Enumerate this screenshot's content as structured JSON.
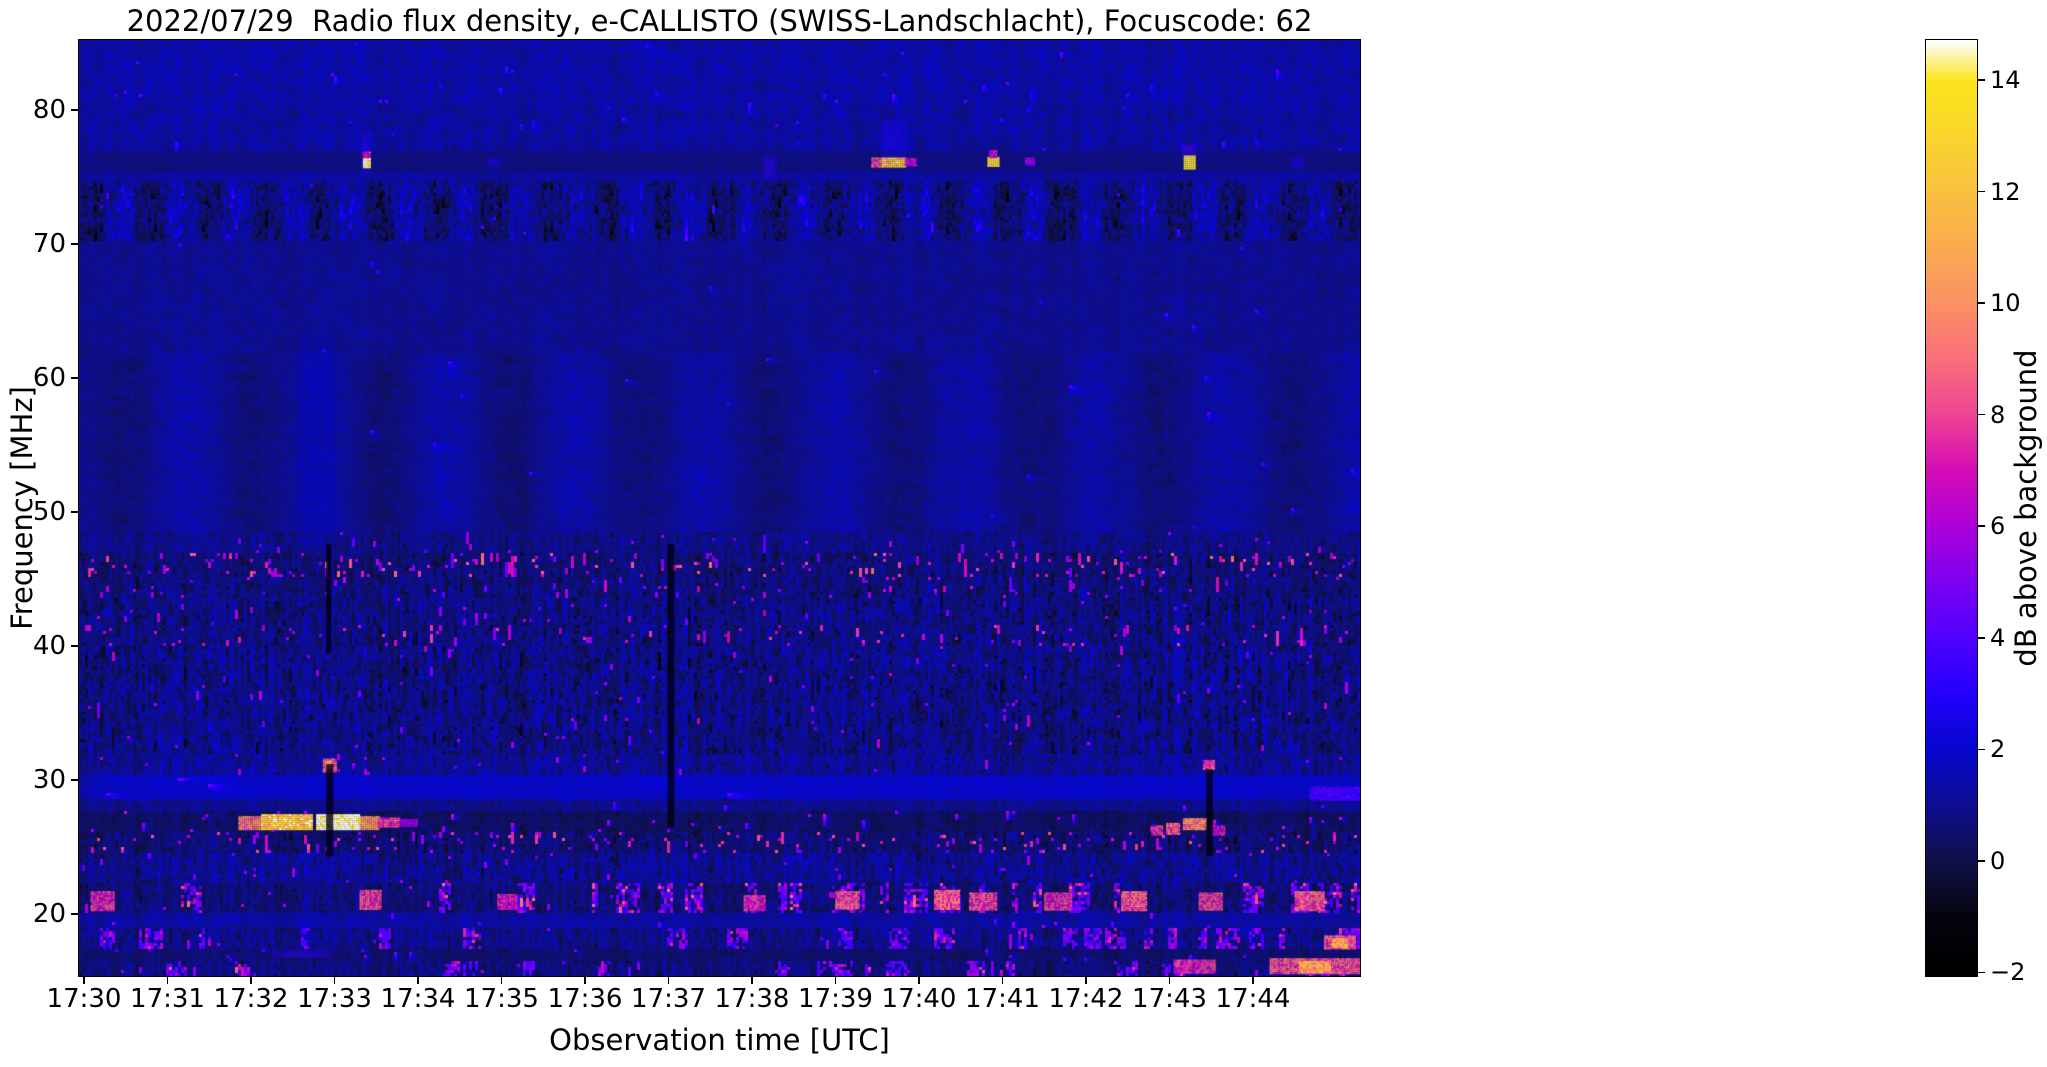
{
  "figure": {
    "title": "2022/07/29  Radio flux density, e-CALLISTO (SWISS-Landschlacht), Focuscode: 62"
  },
  "chart_data": {
    "type": "heatmap",
    "title": "2022/07/29  Radio flux density, e-CALLISTO (SWISS-Landschlacht), Focuscode: 62",
    "xlabel": "Observation time [UTC]",
    "ylabel": "Frequency [MHz]",
    "x_ticks": [
      "17:30",
      "17:31",
      "17:32",
      "17:33",
      "17:34",
      "17:35",
      "17:36",
      "17:37",
      "17:38",
      "17:39",
      "17:40",
      "17:41",
      "17:42",
      "17:43",
      "17:44"
    ],
    "y_ticks": [
      80,
      70,
      60,
      50,
      40,
      30,
      20
    ],
    "x_range_minutes_after_1730": [
      -0.06,
      15.28
    ],
    "freq_range_mhz": [
      15.4,
      85.2
    ],
    "grid": false,
    "colorbar": {
      "label": "dB above background",
      "tick_labels": [
        "14",
        "12",
        "10",
        "8",
        "6",
        "4",
        "2",
        "0",
        "−2"
      ],
      "tick_values": [
        14,
        12,
        10,
        8,
        6,
        4,
        2,
        0,
        -2
      ],
      "range": [
        -2,
        14.7
      ],
      "colormap": "gnuplot2",
      "stops": [
        [
          -2,
          "#000000"
        ],
        [
          -1,
          "#05050f"
        ],
        [
          0,
          "#10104a"
        ],
        [
          1,
          "#0e0e90"
        ],
        [
          2,
          "#0707d0"
        ],
        [
          3,
          "#2401fb"
        ],
        [
          4,
          "#5100ff"
        ],
        [
          5,
          "#7d00f1"
        ],
        [
          6,
          "#ac00d9"
        ],
        [
          7,
          "#d50db6"
        ],
        [
          8,
          "#ef4594"
        ],
        [
          9,
          "#f96f7a"
        ],
        [
          10,
          "#fc9164"
        ],
        [
          11,
          "#fbab51"
        ],
        [
          12,
          "#f9c13f"
        ],
        [
          13,
          "#fad52c"
        ],
        [
          14,
          "#fbe51d"
        ],
        [
          14.7,
          "#ffffff"
        ]
      ]
    },
    "bands": [
      {
        "fh": 85.3,
        "fl": 80.5,
        "b": 1.35,
        "n": 0.75,
        "sp": 0.003,
        "s": [
          3,
          4.5
        ],
        "sm": 0.25
      },
      {
        "fh": 80.5,
        "fl": 76.9,
        "b": 1.25,
        "n": 0.8,
        "sp": 0.002,
        "s": [
          3,
          4
        ],
        "sm": 0.2
      },
      {
        "fh": 76.9,
        "fl": 75.3,
        "b": 0.75,
        "n": 0.3,
        "sp": 0,
        "s": [
          0,
          0
        ],
        "sm": 0.75
      },
      {
        "fh": 75.3,
        "fl": 74.6,
        "b": 1.25,
        "n": 0.6,
        "sp": 0,
        "s": [
          0,
          0
        ],
        "sm": 0.3
      },
      {
        "fh": 74.6,
        "fl": 70.2,
        "b": 0.92,
        "n": 1.05,
        "sp": 0.002,
        "s": [
          3,
          4
        ],
        "sm": 0,
        "wave": 0.4,
        "wp": 57
      },
      {
        "fh": 70.2,
        "fl": 62.0,
        "b": 1.0,
        "n": 0.6,
        "sp": 0.001,
        "s": [
          3,
          4
        ],
        "sm": 0.35
      },
      {
        "fh": 62.0,
        "fl": 48.5,
        "b": 1.0,
        "n": 0.5,
        "sp": 0.001,
        "s": [
          3,
          4
        ],
        "sm": 0.45,
        "wave": 0.12,
        "wp": 130
      },
      {
        "fh": 48.5,
        "fl": 47.0,
        "b": 0.85,
        "n": 0.8,
        "sp": 0.01,
        "s": [
          4,
          6
        ],
        "sm": 0
      },
      {
        "fh": 47.0,
        "fl": 45.2,
        "b": 0.6,
        "n": 0.95,
        "sp": 0.055,
        "s": [
          4.5,
          9
        ],
        "sm": 0
      },
      {
        "fh": 45.2,
        "fl": 43.5,
        "b": 0.7,
        "n": 1.05,
        "sp": 0.02,
        "s": [
          4,
          7
        ],
        "sm": 0
      },
      {
        "fh": 43.5,
        "fl": 41.6,
        "b": 0.75,
        "n": 1.2,
        "sp": 0.008,
        "s": [
          4,
          6.5
        ],
        "sm": 0
      },
      {
        "fh": 41.6,
        "fl": 40.1,
        "b": 0.75,
        "n": 1.15,
        "sp": 0.03,
        "s": [
          5,
          8
        ],
        "sm": 0
      },
      {
        "fh": 40.1,
        "fl": 31.9,
        "b": 0.8,
        "n": 1.25,
        "sp": 0.006,
        "s": [
          4,
          6.5
        ],
        "sm": 0
      },
      {
        "fh": 31.9,
        "fl": 30.4,
        "b": 1.05,
        "n": 1.0,
        "sp": 0.012,
        "s": [
          4,
          6
        ],
        "sm": 0
      },
      {
        "fh": 30.4,
        "fl": 28.6,
        "b": 1.85,
        "n": 0.55,
        "sp": 0.004,
        "s": [
          4,
          5
        ],
        "sm": 0.7
      },
      {
        "fh": 28.6,
        "fl": 27.7,
        "b": 0.95,
        "n": 0.75,
        "sp": 0.004,
        "s": [
          4,
          5.5
        ],
        "sm": 0.2
      },
      {
        "fh": 27.7,
        "fl": 26.2,
        "b": 0.35,
        "n": 0.65,
        "sp": 0.012,
        "s": [
          4.5,
          7
        ],
        "sm": 0.2
      },
      {
        "fh": 26.2,
        "fl": 24.5,
        "b": 0.55,
        "n": 0.95,
        "sp": 0.045,
        "s": [
          4.5,
          8.5
        ],
        "sm": 0
      },
      {
        "fh": 24.5,
        "fl": 22.4,
        "b": 1.0,
        "n": 1.1,
        "sp": 0.008,
        "s": [
          4,
          6
        ],
        "sm": 0
      },
      {
        "fh": 22.4,
        "fl": 20.1,
        "b": 0.6,
        "n": 0.85,
        "sp": 0.004,
        "s": [
          4,
          6
        ],
        "sm": 0,
        "blob": [
          0.1,
          0.45
        ],
        "bv": [
          3.5,
          9
        ]
      },
      {
        "fh": 20.1,
        "fl": 18.9,
        "b": 1.25,
        "n": 0.75,
        "sp": 0.006,
        "s": [
          4,
          6
        ],
        "sm": 0.2
      },
      {
        "fh": 18.9,
        "fl": 17.3,
        "b": 0.85,
        "n": 0.95,
        "sp": 0.004,
        "s": [
          4,
          6
        ],
        "sm": 0,
        "blob": [
          0.15,
          0.33
        ],
        "bv": [
          3.5,
          8
        ]
      },
      {
        "fh": 17.3,
        "fl": 16.5,
        "b": 0.5,
        "n": 0.6,
        "sp": 0.01,
        "s": [
          3.5,
          5
        ],
        "sm": 0.3
      },
      {
        "fh": 16.5,
        "fl": 15.3,
        "b": 0.7,
        "n": 0.85,
        "sp": 0.006,
        "s": [
          4,
          6
        ],
        "sm": 0,
        "blob": [
          0.03,
          0.5
        ],
        "bv": [
          3.5,
          8.5
        ]
      }
    ],
    "features": [
      [
        3.32,
        3.43,
        75.2,
        78.4,
        3.2,
        1
      ],
      [
        3.34,
        3.42,
        76.4,
        76.9,
        7,
        0
      ],
      [
        3.34,
        3.42,
        75.7,
        76.4,
        14.5,
        0
      ],
      [
        4.82,
        5.0,
        75.7,
        76.5,
        2.9,
        1
      ],
      [
        8.13,
        8.3,
        74.8,
        76.6,
        3.3,
        1
      ],
      [
        9.43,
        9.56,
        75.8,
        76.45,
        8.5,
        0
      ],
      [
        9.55,
        9.85,
        76.4,
        79.3,
        2.8,
        1
      ],
      [
        9.56,
        9.83,
        75.8,
        76.45,
        12.3,
        0
      ],
      [
        9.83,
        9.97,
        75.9,
        76.4,
        6.5,
        0
      ],
      [
        10.82,
        10.95,
        75.8,
        76.5,
        14,
        0
      ],
      [
        10.84,
        10.93,
        76.5,
        77.0,
        6.5,
        0
      ],
      [
        11.27,
        11.37,
        75.9,
        76.45,
        5.5,
        0
      ],
      [
        13.14,
        13.32,
        76.6,
        77.5,
        3.8,
        1
      ],
      [
        13.17,
        13.29,
        75.6,
        76.6,
        14,
        0
      ],
      [
        14.44,
        14.62,
        75.6,
        76.5,
        2.8,
        1
      ],
      [
        2.55,
        3.0,
        47.5,
        63,
        1.9,
        3
      ],
      [
        2.86,
        3.01,
        30.7,
        31.6,
        8.5,
        0
      ],
      [
        2.9,
        2.97,
        30.9,
        31.45,
        11.5,
        0
      ],
      [
        1.85,
        2.12,
        26.35,
        27.3,
        9.5,
        0
      ],
      [
        2.12,
        2.73,
        26.35,
        27.45,
        12.5,
        0
      ],
      [
        2.78,
        3.3,
        26.3,
        27.45,
        14.9,
        0
      ],
      [
        3.3,
        3.52,
        26.4,
        27.3,
        10.5,
        0
      ],
      [
        3.52,
        3.78,
        26.5,
        27.2,
        7.5,
        0
      ],
      [
        3.78,
        3.98,
        26.6,
        27.1,
        5.5,
        0
      ],
      [
        13.4,
        13.54,
        30.8,
        31.5,
        8,
        0
      ],
      [
        12.78,
        12.92,
        25.9,
        26.6,
        7.5,
        0
      ],
      [
        12.96,
        13.12,
        26.0,
        26.8,
        8.5,
        0
      ],
      [
        13.16,
        13.44,
        26.3,
        27.15,
        9.5,
        0
      ],
      [
        13.5,
        13.66,
        26.0,
        26.6,
        7,
        0
      ],
      [
        14.68,
        15.3,
        28.6,
        29.5,
        3.8,
        0
      ],
      [
        14.85,
        15.22,
        17.4,
        18.4,
        8.5,
        0
      ],
      [
        14.95,
        15.12,
        17.6,
        18.2,
        11,
        0
      ],
      [
        13.05,
        13.55,
        15.6,
        16.6,
        7.5,
        0
      ],
      [
        14.2,
        15.3,
        15.6,
        16.7,
        8.5,
        0
      ],
      [
        14.55,
        14.92,
        15.7,
        16.5,
        10.5,
        0
      ],
      [
        2.25,
        2.95,
        16.7,
        17.35,
        3.2,
        1
      ],
      [
        0.08,
        0.35,
        20.3,
        21.7,
        7.5,
        0
      ],
      [
        3.3,
        3.56,
        20.4,
        21.8,
        8,
        0
      ],
      [
        4.95,
        5.18,
        20.4,
        21.5,
        7,
        0
      ],
      [
        7.9,
        8.16,
        20.3,
        21.4,
        7.5,
        0
      ],
      [
        9.0,
        9.28,
        20.5,
        21.7,
        8.5,
        0
      ],
      [
        10.18,
        10.48,
        20.4,
        21.8,
        8.5,
        0
      ],
      [
        10.6,
        10.92,
        20.3,
        21.6,
        8,
        0
      ],
      [
        11.5,
        11.82,
        20.4,
        21.6,
        7.5,
        0
      ],
      [
        12.42,
        12.72,
        20.3,
        21.7,
        8.5,
        0
      ],
      [
        13.35,
        13.62,
        20.4,
        21.6,
        8,
        0
      ],
      [
        14.5,
        14.85,
        20.3,
        21.7,
        8.5,
        0
      ],
      [
        2.9,
        2.985,
        24.3,
        31.2,
        -1.6,
        2
      ],
      [
        2.9,
        2.96,
        39.5,
        47.6,
        -1.1,
        2
      ],
      [
        6.99,
        7.07,
        26.5,
        47.6,
        -1.2,
        2
      ],
      [
        13.44,
        13.52,
        24.3,
        30.8,
        -1.5,
        2
      ]
    ],
    "feature_style_codes": {
      "0": "textured bright patch",
      "1": "soft glow",
      "2": "dark vertical notch",
      "3": "faint diffuse enhancement"
    }
  }
}
